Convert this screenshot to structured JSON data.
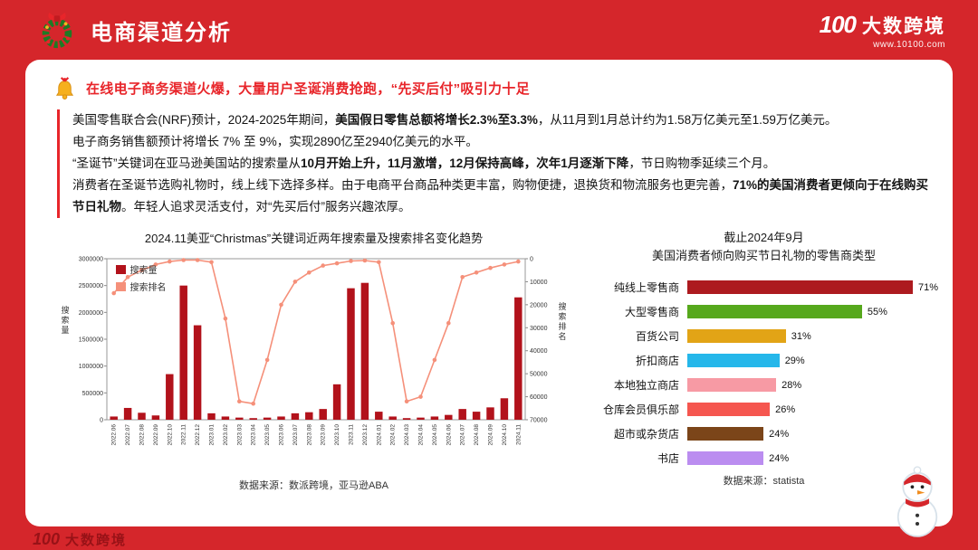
{
  "colors": {
    "frame_red": "#d5262b",
    "accent_red": "#e8252a"
  },
  "header": {
    "title": "电商渠道分析",
    "logo": {
      "mark": "100",
      "name": "大数跨境",
      "url": "www.10100.com"
    }
  },
  "footer": {
    "logo_mark": "100",
    "logo_name": "大数跨境"
  },
  "headline": "在线电子商务渠道火爆，大量用户圣诞消费抢跑，“先买后付”吸引力十足",
  "paragraphs": [
    {
      "segments": [
        {
          "text": "美国零售联合会(NRF)预计，2024-2025年期间，",
          "bold": false
        },
        {
          "text": "美国假日零售总额将增长2.3%至3.3%",
          "bold": true
        },
        {
          "text": "，从11月到1月总计约为1.58万亿美元至1.59万亿美元。",
          "bold": false
        }
      ]
    },
    {
      "segments": [
        {
          "text": "电子商务销售额预计将增长 7% 至 9%，实现2890亿至2940亿美元的水平。",
          "bold": false
        }
      ]
    },
    {
      "segments": [
        {
          "text": "“圣诞节”关键词在亚马逊美国站的搜索量从",
          "bold": false
        },
        {
          "text": "10月开始上升，11月激增，12月保持高峰，次年1月逐渐下降",
          "bold": true
        },
        {
          "text": "，节日购物季延续三个月。",
          "bold": false
        }
      ]
    },
    {
      "segments": [
        {
          "text": "消费者在圣诞节选购礼物时，线上线下选择多样。由于电商平台商品种类更丰富，购物便捷，退换货和物流服务也更完善，",
          "bold": false
        },
        {
          "text": "71%的美国消费者更倾向于在线购买节日礼物",
          "bold": true
        },
        {
          "text": "。年轻人追求灵活支付，对“先买后付”服务兴趣浓厚。",
          "bold": false
        }
      ]
    }
  ],
  "chart_data": [
    {
      "type": "combo",
      "title": "2024.11美亚“Christmas”关键词近两年搜索量及搜索排名变化趋势",
      "legend": [
        "搜索量",
        "搜索排名"
      ],
      "left_axis": {
        "label": "搜索量",
        "min": 0,
        "max": 3000000,
        "ticks": [
          0,
          500000,
          1000000,
          1500000,
          2000000,
          2500000,
          3000000
        ]
      },
      "right_axis": {
        "label": "搜索排名",
        "min": 0,
        "max": 70000,
        "inverted": true,
        "ticks": [
          0,
          10000,
          20000,
          30000,
          40000,
          50000,
          60000,
          70000
        ]
      },
      "categories": [
        "2022.06",
        "2022.07",
        "2022.08",
        "2022.09",
        "2022.10",
        "2022.11",
        "2022.12",
        "2023.01",
        "2023.02",
        "2023.03",
        "2023.04",
        "2023.05",
        "2023.06",
        "2023.07",
        "2023.08",
        "2023.09",
        "2023.10",
        "2023.11",
        "2023.12",
        "2024.01",
        "2024.02",
        "2024.03",
        "2024.04",
        "2024.05",
        "2024.06",
        "2024.07",
        "2024.08",
        "2024.09",
        "2024.10",
        "2024.11"
      ],
      "series": [
        {
          "name": "搜索量",
          "kind": "bar",
          "color": "#b2121b",
          "values": [
            60000,
            220000,
            130000,
            80000,
            850000,
            2500000,
            1760000,
            120000,
            60000,
            40000,
            30000,
            40000,
            60000,
            120000,
            140000,
            200000,
            660000,
            2450000,
            2550000,
            150000,
            60000,
            30000,
            40000,
            60000,
            90000,
            200000,
            150000,
            230000,
            400000,
            2280000
          ]
        },
        {
          "name": "搜索排名",
          "kind": "line",
          "color": "#f5907a",
          "values": [
            15000,
            8000,
            5000,
            2500,
            1200,
            600,
            600,
            1500,
            26000,
            62000,
            63000,
            44000,
            20000,
            10000,
            6000,
            3000,
            2000,
            1000,
            800,
            1500,
            28000,
            62000,
            60000,
            44000,
            28000,
            8000,
            6000,
            4000,
            2500,
            1200
          ]
        }
      ],
      "source": "数据来源：数派跨境，亚马逊ABA"
    },
    {
      "type": "bar",
      "orientation": "horizontal",
      "title_lines": [
        "截止2024年9月",
        "美国消费者倾向购买节日礼物的零售商类型"
      ],
      "categories": [
        "纯线上零售商",
        "大型零售商",
        "百货公司",
        "折扣商店",
        "本地独立商店",
        "仓库会员俱乐部",
        "超市或杂货店",
        "书店"
      ],
      "values": [
        71,
        55,
        31,
        29,
        28,
        26,
        24,
        24
      ],
      "unit": "%",
      "colors": [
        "#ad1a1f",
        "#56a81c",
        "#e2a416",
        "#25b7ea",
        "#f79aa4",
        "#f5564f",
        "#7b4519",
        "#bb8df0"
      ],
      "xlim": [
        0,
        75
      ],
      "source": "数据来源：statista"
    }
  ]
}
